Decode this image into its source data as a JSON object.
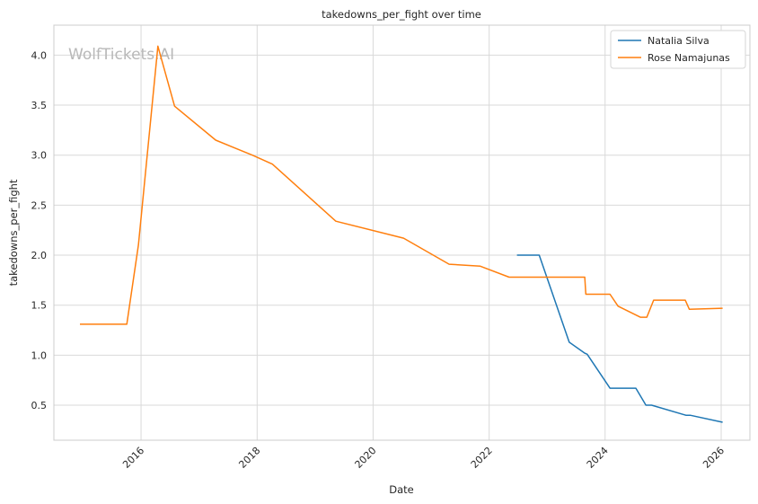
{
  "chart_data": {
    "type": "line",
    "title": "takedowns_per_fight over time",
    "xlabel": "Date",
    "ylabel": "takedowns_per_fight",
    "watermark": "WolfTickets.AI",
    "xlim": [
      "2014-07-01",
      "2026-07-01"
    ],
    "ylim": [
      0.15,
      4.3
    ],
    "x_ticks": [
      "2016-01-01",
      "2018-01-01",
      "2020-01-01",
      "2022-01-01",
      "2024-01-01",
      "2026-01-01"
    ],
    "x_tick_labels": [
      "2016",
      "2018",
      "2020",
      "2022",
      "2024",
      "2026"
    ],
    "y_ticks": [
      0.5,
      1.0,
      1.5,
      2.0,
      2.5,
      3.0,
      3.5,
      4.0
    ],
    "y_tick_labels": [
      "0.5",
      "1.0",
      "1.5",
      "2.0",
      "2.5",
      "3.0",
      "3.5",
      "4.0"
    ],
    "grid": true,
    "legend_position": "top-right",
    "series": [
      {
        "name": "Natalia Silva",
        "color": "#1f77b4",
        "points": [
          [
            "2022-06-25",
            2.0
          ],
          [
            "2022-11-12",
            2.0
          ],
          [
            "2023-05-20",
            1.13
          ],
          [
            "2023-08-26",
            1.02
          ],
          [
            "2023-09-10",
            1.01
          ],
          [
            "2024-02-01",
            0.67
          ],
          [
            "2024-07-13",
            0.67
          ],
          [
            "2024-09-14",
            0.5
          ],
          [
            "2024-10-20",
            0.5
          ],
          [
            "2025-05-24",
            0.4
          ],
          [
            "2025-06-20",
            0.4
          ],
          [
            "2026-01-10",
            0.33
          ]
        ]
      },
      {
        "name": "Rose Namajunas",
        "color": "#ff7f0e",
        "points": [
          [
            "2014-12-12",
            1.31
          ],
          [
            "2015-10-03",
            1.31
          ],
          [
            "2015-12-15",
            2.1
          ],
          [
            "2016-04-16",
            4.09
          ],
          [
            "2016-07-30",
            3.49
          ],
          [
            "2017-04-15",
            3.15
          ],
          [
            "2017-12-02",
            3.0
          ],
          [
            "2018-04-07",
            2.91
          ],
          [
            "2019-05-11",
            2.34
          ],
          [
            "2020-07-11",
            2.17
          ],
          [
            "2021-04-24",
            1.91
          ],
          [
            "2021-11-06",
            1.89
          ],
          [
            "2022-05-07",
            1.78
          ],
          [
            "2023-08-26",
            1.78
          ],
          [
            "2023-09-02",
            1.61
          ],
          [
            "2024-02-01",
            1.61
          ],
          [
            "2024-03-23",
            1.49
          ],
          [
            "2024-08-10",
            1.38
          ],
          [
            "2024-09-20",
            1.38
          ],
          [
            "2024-11-02",
            1.55
          ],
          [
            "2025-05-20",
            1.55
          ],
          [
            "2025-06-14",
            1.46
          ],
          [
            "2026-01-10",
            1.47
          ]
        ]
      }
    ]
  }
}
